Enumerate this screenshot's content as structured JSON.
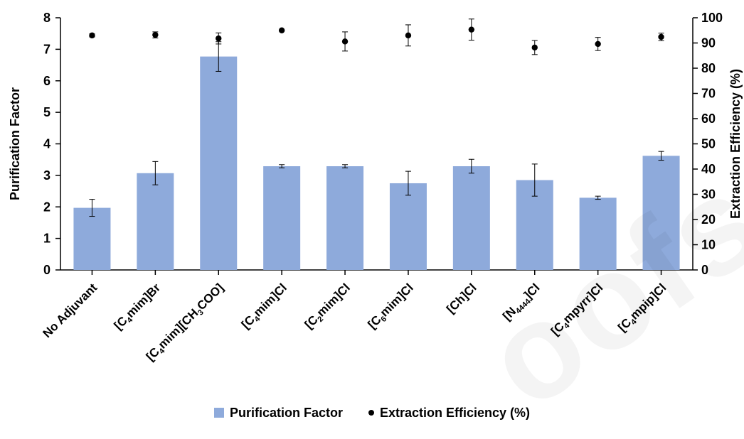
{
  "chart_data": {
    "type": "bar",
    "categories": [
      {
        "parts": [
          {
            "t": "No Adjuvant"
          }
        ]
      },
      {
        "parts": [
          {
            "t": "[C"
          },
          {
            "t": "4",
            "sub": true
          },
          {
            "t": "mim]Br"
          }
        ]
      },
      {
        "parts": [
          {
            "t": "[C"
          },
          {
            "t": "4",
            "sub": true
          },
          {
            "t": "mim][CH"
          },
          {
            "t": "3",
            "sub": true
          },
          {
            "t": "COO]"
          }
        ]
      },
      {
        "parts": [
          {
            "t": "[C"
          },
          {
            "t": "4",
            "sub": true
          },
          {
            "t": "mim]Cl"
          }
        ]
      },
      {
        "parts": [
          {
            "t": "[C"
          },
          {
            "t": "2",
            "sub": true
          },
          {
            "t": "mim]Cl"
          }
        ]
      },
      {
        "parts": [
          {
            "t": "[C"
          },
          {
            "t": "6",
            "sub": true
          },
          {
            "t": "mim]Cl"
          }
        ]
      },
      {
        "parts": [
          {
            "t": "[Ch]Cl"
          }
        ]
      },
      {
        "parts": [
          {
            "t": "[N"
          },
          {
            "t": "4444",
            "sub": true
          },
          {
            "t": "]Cl"
          }
        ]
      },
      {
        "parts": [
          {
            "t": "[C"
          },
          {
            "t": "4",
            "sub": true
          },
          {
            "t": "mpyrr]Cl"
          }
        ]
      },
      {
        "parts": [
          {
            "t": "[C"
          },
          {
            "t": "4",
            "sub": true
          },
          {
            "t": "mpip]Cl"
          }
        ]
      }
    ],
    "series": [
      {
        "name": "Purification Factor",
        "kind": "bar",
        "axis": "left",
        "color": "#8eaadb",
        "values": [
          1.97,
          3.07,
          6.77,
          3.29,
          3.29,
          2.75,
          3.29,
          2.85,
          2.29,
          3.62
        ],
        "errors": [
          0.27,
          0.37,
          0.47,
          0.05,
          0.05,
          0.38,
          0.22,
          0.51,
          0.05,
          0.14
        ]
      },
      {
        "name": "Extraction Efficiency (%)",
        "kind": "scatter",
        "axis": "right",
        "color": "#000000",
        "values": [
          93.0,
          93.2,
          91.8,
          95.0,
          90.6,
          93.0,
          95.3,
          88.2,
          89.6,
          92.4
        ],
        "errors": [
          0.6,
          1.2,
          2.2,
          0.0,
          3.8,
          4.2,
          4.2,
          2.8,
          2.6,
          1.5
        ]
      }
    ],
    "ylabel": "Purification Factor",
    "y2label": "Extraction Efficiency (%)",
    "ylim": [
      0,
      8
    ],
    "yticks": [
      "0",
      "1",
      "2",
      "3",
      "4",
      "5",
      "6",
      "7",
      "8"
    ],
    "y2lim": [
      0,
      100
    ],
    "y2ticks": [
      "0",
      "10",
      "20",
      "30",
      "40",
      "50",
      "60",
      "70",
      "80",
      "90",
      "100"
    ],
    "grid": false,
    "legend_position": "bottom"
  },
  "watermark": "oofs"
}
